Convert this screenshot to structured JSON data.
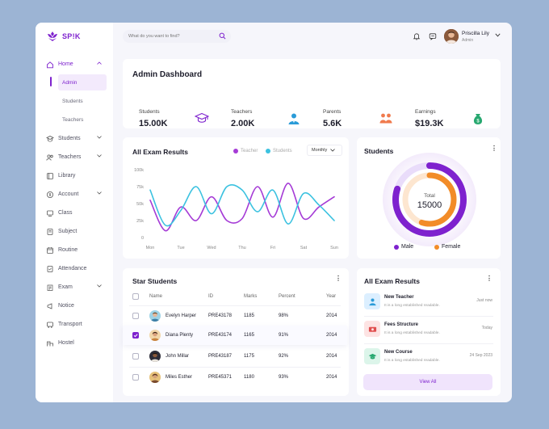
{
  "brand": {
    "name": "SP!K",
    "accent": "#7e22ce"
  },
  "search": {
    "placeholder": "What do you want to find?"
  },
  "user": {
    "name": "Priscilla Lily",
    "role": "Admin"
  },
  "sidebar": {
    "items": [
      {
        "label": "Home",
        "icon": "home-icon"
      },
      {
        "label": "Admin"
      },
      {
        "label": "Students"
      },
      {
        "label": "Teachers"
      },
      {
        "label": "Students",
        "icon": "student-icon"
      },
      {
        "label": "Teachers",
        "icon": "teacher-icon"
      },
      {
        "label": "Library",
        "icon": "library-icon"
      },
      {
        "label": "Account",
        "icon": "account-icon"
      },
      {
        "label": "Class",
        "icon": "class-icon"
      },
      {
        "label": "Subject",
        "icon": "subject-icon"
      },
      {
        "label": "Routine",
        "icon": "routine-icon"
      },
      {
        "label": "Attendance",
        "icon": "attendance-icon"
      },
      {
        "label": "Exam",
        "icon": "exam-icon"
      },
      {
        "label": "Notice",
        "icon": "notice-icon"
      },
      {
        "label": "Transport",
        "icon": "transport-icon"
      },
      {
        "label": "Hostel",
        "icon": "hostel-icon"
      }
    ]
  },
  "dashboard": {
    "title": "Admin Dashboard"
  },
  "stats": [
    {
      "label": "Students",
      "value": "15.00K",
      "bg": "#ede1fb",
      "icon": "graduation-cap-icon"
    },
    {
      "label": "Teachers",
      "value": "2.00K",
      "bg": "#e1f0fc",
      "icon": "teacher-icon"
    },
    {
      "label": "Parents",
      "value": "5.6K",
      "bg": "#fde9e0",
      "icon": "parents-icon"
    },
    {
      "label": "Earnings",
      "value": "$19.3K",
      "bg": "#e0f6e8",
      "icon": "money-bag-icon"
    }
  ],
  "exam_chart": {
    "title": "All Exam Results",
    "legend_teacher": "Teacher",
    "legend_students": "Students",
    "period": "Monthly"
  },
  "chart_data": {
    "type": "line",
    "title": "All Exam Results",
    "categories": [
      "Mon",
      "Tue",
      "Wed",
      "Thu",
      "Fri",
      "Sat",
      "Sun"
    ],
    "yticks": [
      "100k",
      "75k",
      "50k",
      "25k",
      "0"
    ],
    "ylim": [
      0,
      100
    ],
    "series": [
      {
        "name": "Teacher",
        "color": "#a53bd6",
        "x": [
          0,
          0.5,
          1,
          1.5,
          2,
          2.5,
          3,
          3.5,
          4,
          4.5,
          5,
          5.5,
          6
        ],
        "values": [
          55,
          10,
          45,
          25,
          60,
          25,
          28,
          75,
          30,
          80,
          28,
          45,
          60
        ]
      },
      {
        "name": "Students",
        "color": "#3cc2e0",
        "x": [
          0,
          0.5,
          1,
          1.5,
          2,
          2.5,
          3,
          3.5,
          4,
          4.5,
          5,
          5.5,
          6
        ],
        "values": [
          70,
          18,
          40,
          75,
          35,
          75,
          70,
          38,
          70,
          20,
          65,
          48,
          25
        ]
      }
    ]
  },
  "students_card": {
    "title": "Students",
    "total_label": "Total",
    "total_value": "15000",
    "legend_male": "Male",
    "legend_female": "Female",
    "male_color": "#7e22ce",
    "female_color": "#f28c28"
  },
  "star_students": {
    "title": "Star Students",
    "headers": [
      "Name",
      "ID",
      "Marks",
      "Percent",
      "Year"
    ],
    "rows": [
      {
        "name": "Evelyn Harper",
        "id": "PRE43178",
        "marks": "1185",
        "percent": "98%",
        "year": "2014",
        "checked": false
      },
      {
        "name": "Diana Plenty",
        "id": "PRE43174",
        "marks": "1165",
        "percent": "91%",
        "year": "2014",
        "checked": true
      },
      {
        "name": "John Millar",
        "id": "PRE43187",
        "marks": "1175",
        "percent": "92%",
        "year": "2014",
        "checked": false
      },
      {
        "name": "Miles Esther",
        "id": "PRE45371",
        "marks": "1180",
        "percent": "93%",
        "year": "2014",
        "checked": false
      }
    ]
  },
  "exam_list": {
    "title": "All Exam Results",
    "items": [
      {
        "title": "New Teacher",
        "desc": "It is a long established readable.",
        "time": "Just now",
        "icon": "teacher-icon",
        "bg": "#dcefff",
        "fg": "#2a9bd8"
      },
      {
        "title": "Fees Structure",
        "desc": "It is a long established readable.",
        "time": "Today",
        "icon": "money-icon",
        "bg": "#fde3e3",
        "fg": "#e04f4f"
      },
      {
        "title": "New Course",
        "desc": "It is a long established readable.",
        "time": "24 Sep 2023",
        "icon": "graduation-cap-icon",
        "bg": "#dcf5ea",
        "fg": "#27a870"
      }
    ],
    "view_all": "View All"
  }
}
